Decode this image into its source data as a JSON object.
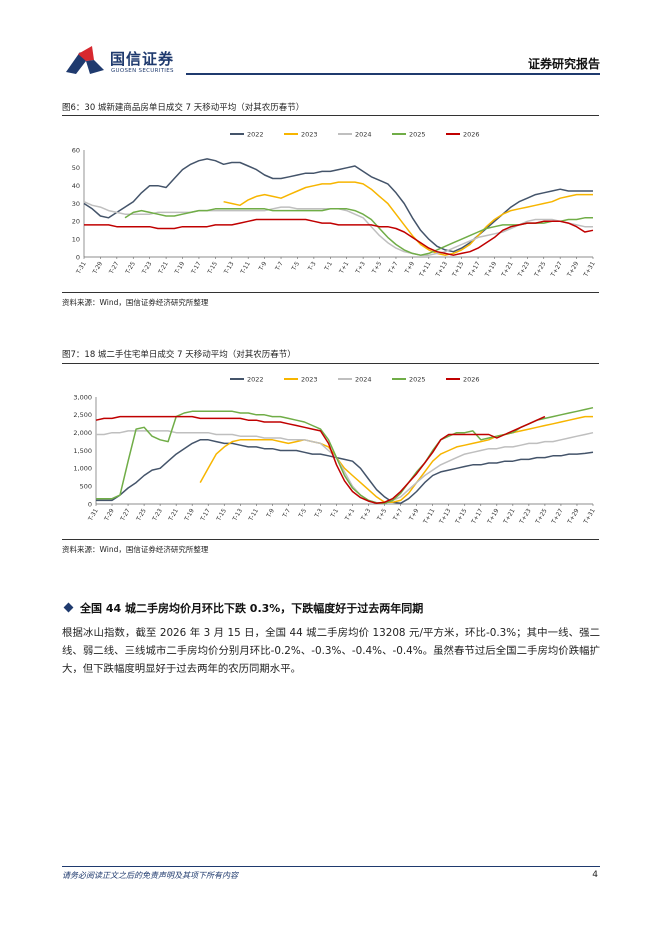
{
  "header": {
    "logo_cn": "国信证券",
    "logo_en": "GUOSEN SECURITIES",
    "report_type": "证券研究报告",
    "brand_color": "#1f3a6e",
    "logo_red": "#d7282f"
  },
  "figures": [
    {
      "title": "图6：30 城新建商品房单日成交 7 天移动平均（对其农历春节）",
      "source": "资料来源：Wind，国信证券经济研究所整理"
    },
    {
      "title": "图7：18 城二手住宅单日成交 7 天移动平均（对其农历春节）",
      "source": "资料来源：Wind，国信证券经济研究所整理"
    }
  ],
  "section": {
    "heading": "全国 44 城二手房均价月环比下跌 0.3%，下跌幅度好于过去两年同期",
    "body": "根据冰山指数，截至 2026 年 3 月 15 日，全国 44 城二手房均价 13208 元/平方米，环比-0.3%；其中一线、强二线、弱二线、三线城市二手房均价分别月环比-0.2%、-0.3%、-0.4%、-0.4%。虽然春节过后全国二手房均价跌幅扩大，但下跌幅度明显好于过去两年的农历同期水平。"
  },
  "footer": {
    "disclaimer": "请务必阅读正文之后的免责声明及其项下所有内容",
    "page": "4"
  },
  "chart_data": [
    {
      "type": "line",
      "x": [
        "T-31",
        "T-30",
        "T-29",
        "T-28",
        "T-27",
        "T-26",
        "T-25",
        "T-24",
        "T-23",
        "T-22",
        "T-21",
        "T-20",
        "T-19",
        "T-18",
        "T-17",
        "T-16",
        "T-15",
        "T-14",
        "T-13",
        "T-12",
        "T-11",
        "T-10",
        "T-9",
        "T-8",
        "T-7",
        "T-6",
        "T-5",
        "T-4",
        "T-3",
        "T-2",
        "T-1",
        "T+0",
        "T+1",
        "T+2",
        "T+3",
        "T+4",
        "T+5",
        "T+6",
        "T+7",
        "T+8",
        "T+9",
        "T+10",
        "T+11",
        "T+12",
        "T+13",
        "T+14",
        "T+15",
        "T+16",
        "T+17",
        "T+18",
        "T+19",
        "T+20",
        "T+21",
        "T+22",
        "T+23",
        "T+24",
        "T+25",
        "T+26",
        "T+27",
        "T+28",
        "T+29",
        "T+30",
        "T+31"
      ],
      "xticks": [
        "T-31",
        "T-29",
        "T-27",
        "T-25",
        "T-23",
        "T-21",
        "T-19",
        "T-17",
        "T-15",
        "T-13",
        "T-11",
        "T-9",
        "T-7",
        "T-5",
        "T-3",
        "T-1",
        "T+1",
        "T+3",
        "T+5",
        "T+7",
        "T+9",
        "T+11",
        "T+13",
        "T+15",
        "T+17",
        "T+19",
        "T+21",
        "T+23",
        "T+25",
        "T+27",
        "T+29",
        "T+31"
      ],
      "yticks": [
        "0",
        "10",
        "20",
        "30",
        "40",
        "50",
        "60"
      ],
      "ylim": [
        0,
        60
      ],
      "legend_position": "top",
      "series": [
        {
          "name": "2022",
          "color": "#44546a",
          "values": [
            30,
            27,
            23,
            22,
            25,
            28,
            31,
            36,
            40,
            40,
            39,
            44,
            49,
            52,
            54,
            55,
            54,
            52,
            53,
            53,
            51,
            49,
            46,
            44,
            44,
            45,
            46,
            47,
            47,
            48,
            48,
            49,
            50,
            51,
            48,
            45,
            43,
            41,
            36,
            30,
            22,
            15,
            10,
            6,
            4,
            3,
            5,
            8,
            12,
            16,
            20,
            24,
            28,
            31,
            33,
            35,
            36,
            37,
            38,
            37,
            37,
            37,
            37
          ]
        },
        {
          "name": "2023",
          "color": "#f7b500",
          "values": [
            null,
            null,
            null,
            null,
            null,
            null,
            null,
            null,
            null,
            null,
            null,
            null,
            null,
            null,
            null,
            null,
            null,
            31,
            30,
            29,
            32,
            34,
            35,
            34,
            33,
            35,
            37,
            39,
            40,
            41,
            41,
            42,
            42,
            42,
            41,
            38,
            34,
            30,
            24,
            18,
            12,
            7,
            4,
            2,
            1,
            2,
            4,
            7,
            12,
            17,
            21,
            24,
            26,
            27,
            28,
            29,
            30,
            31,
            33,
            34,
            35,
            35,
            35
          ]
        },
        {
          "name": "2024",
          "color": "#bfbfbf",
          "values": [
            31,
            29,
            28,
            26,
            25,
            24,
            24,
            24,
            24,
            25,
            25,
            25,
            25,
            25,
            26,
            26,
            26,
            26,
            26,
            26,
            26,
            26,
            26,
            27,
            28,
            28,
            27,
            27,
            27,
            27,
            27,
            27,
            26,
            24,
            22,
            17,
            12,
            8,
            5,
            3,
            2,
            1,
            1,
            2,
            3,
            5,
            7,
            9,
            11,
            12,
            13,
            14,
            16,
            18,
            20,
            21,
            21,
            21,
            20,
            19,
            18,
            17,
            17
          ]
        },
        {
          "name": "2025",
          "color": "#70ad47",
          "values": [
            null,
            null,
            null,
            null,
            null,
            22,
            25,
            26,
            25,
            24,
            23,
            23,
            24,
            25,
            26,
            26,
            27,
            27,
            27,
            27,
            27,
            27,
            27,
            26,
            26,
            26,
            26,
            26,
            26,
            26,
            27,
            27,
            27,
            26,
            24,
            21,
            16,
            11,
            7,
            4,
            2,
            1,
            2,
            4,
            6,
            8,
            10,
            12,
            14,
            16,
            17,
            18,
            18,
            18,
            19,
            19,
            19,
            20,
            20,
            21,
            21,
            22,
            22
          ]
        },
        {
          "name": "2026",
          "color": "#c00000",
          "values": [
            18,
            18,
            18,
            18,
            17,
            17,
            17,
            17,
            17,
            16,
            16,
            16,
            17,
            17,
            17,
            17,
            18,
            18,
            18,
            19,
            20,
            21,
            21,
            21,
            21,
            21,
            21,
            21,
            20,
            19,
            19,
            18,
            18,
            18,
            18,
            18,
            17,
            17,
            16,
            14,
            11,
            8,
            5,
            3,
            2,
            1,
            2,
            3,
            5,
            8,
            11,
            15,
            17,
            18,
            19,
            19,
            20,
            20,
            20,
            19,
            17,
            14,
            15
          ]
        }
      ]
    },
    {
      "type": "line",
      "x": [
        "T-31",
        "T-30",
        "T-29",
        "T-28",
        "T-27",
        "T-26",
        "T-25",
        "T-24",
        "T-23",
        "T-22",
        "T-21",
        "T-20",
        "T-19",
        "T-18",
        "T-17",
        "T-16",
        "T-15",
        "T-14",
        "T-13",
        "T-12",
        "T-11",
        "T-10",
        "T-9",
        "T-8",
        "T-7",
        "T-6",
        "T-5",
        "T-4",
        "T-3",
        "T-2",
        "T-1",
        "T+0",
        "T+1",
        "T+2",
        "T+3",
        "T+4",
        "T+5",
        "T+6",
        "T+7",
        "T+8",
        "T+9",
        "T+10",
        "T+11",
        "T+12",
        "T+13",
        "T+14",
        "T+15",
        "T+16",
        "T+17",
        "T+18",
        "T+19",
        "T+20",
        "T+21",
        "T+22",
        "T+23",
        "T+24",
        "T+25",
        "T+26",
        "T+27",
        "T+28",
        "T+29",
        "T+30",
        "T+31"
      ],
      "xticks": [
        "T-31",
        "T-29",
        "T-27",
        "T-25",
        "T-23",
        "T-21",
        "T-19",
        "T-17",
        "T-15",
        "T-13",
        "T-11",
        "T-9",
        "T-7",
        "T-5",
        "T-3",
        "T-1",
        "T+1",
        "T+3",
        "T+5",
        "T+7",
        "T+9",
        "T+11",
        "T+13",
        "T+15",
        "T+17",
        "T+19",
        "T+21",
        "T+23",
        "T+25",
        "T+27",
        "T+29",
        "T+31"
      ],
      "yticks": [
        "0",
        "500",
        "1,000",
        "1,500",
        "2,000",
        "2,500",
        "3,000"
      ],
      "ylim": [
        0,
        3000
      ],
      "legend_position": "top",
      "series": [
        {
          "name": "2022",
          "color": "#44546a",
          "values": [
            100,
            100,
            100,
            250,
            450,
            600,
            800,
            950,
            1000,
            1200,
            1400,
            1550,
            1700,
            1800,
            1800,
            1750,
            1700,
            1700,
            1650,
            1600,
            1600,
            1550,
            1550,
            1500,
            1500,
            1500,
            1450,
            1400,
            1400,
            1350,
            1300,
            1250,
            1200,
            1000,
            700,
            400,
            200,
            50,
            20,
            150,
            350,
            600,
            800,
            900,
            950,
            1000,
            1050,
            1100,
            1100,
            1150,
            1150,
            1200,
            1200,
            1250,
            1250,
            1300,
            1300,
            1350,
            1350,
            1400,
            1400,
            1420,
            1450
          ]
        },
        {
          "name": "2023",
          "color": "#f7b500",
          "values": [
            null,
            null,
            null,
            null,
            null,
            null,
            null,
            null,
            null,
            null,
            null,
            null,
            null,
            600,
            1000,
            1400,
            1600,
            1750,
            1800,
            1800,
            1800,
            1800,
            1800,
            1750,
            1700,
            1750,
            1800,
            1750,
            1700,
            1600,
            1300,
            1000,
            800,
            600,
            400,
            200,
            50,
            50,
            100,
            300,
            600,
            900,
            1200,
            1400,
            1500,
            1600,
            1650,
            1700,
            1750,
            1800,
            1900,
            1950,
            2000,
            2050,
            2100,
            2150,
            2200,
            2250,
            2300,
            2350,
            2400,
            2450,
            2450
          ]
        },
        {
          "name": "2024",
          "color": "#bfbfbf",
          "values": [
            1950,
            1950,
            2000,
            2000,
            2050,
            2050,
            2050,
            2050,
            2050,
            2050,
            2000,
            2000,
            2000,
            2000,
            2000,
            1950,
            1950,
            1950,
            1900,
            1900,
            1900,
            1850,
            1850,
            1850,
            1800,
            1800,
            1800,
            1750,
            1700,
            1500,
            1300,
            900,
            500,
            250,
            100,
            40,
            20,
            100,
            200,
            400,
            600,
            800,
            950,
            1100,
            1200,
            1300,
            1400,
            1450,
            1500,
            1550,
            1550,
            1600,
            1600,
            1650,
            1700,
            1700,
            1750,
            1750,
            1800,
            1850,
            1900,
            1950,
            2000
          ]
        },
        {
          "name": "2025",
          "color": "#70ad47",
          "values": [
            150,
            150,
            150,
            250,
            1200,
            2100,
            2150,
            1900,
            1800,
            1750,
            2450,
            2550,
            2600,
            2600,
            2600,
            2600,
            2600,
            2600,
            2550,
            2550,
            2500,
            2500,
            2450,
            2450,
            2400,
            2350,
            2300,
            2200,
            2100,
            1800,
            1300,
            800,
            450,
            250,
            100,
            30,
            20,
            100,
            300,
            600,
            900,
            1150,
            1500,
            1800,
            1900,
            2000,
            2000,
            2050,
            1800,
            1850,
            1900,
            1950,
            2000,
            2150,
            2250,
            2350,
            2400,
            2450,
            2500,
            2550,
            2600,
            2650,
            2700
          ]
        },
        {
          "name": "2026",
          "color": "#c00000",
          "values": [
            2350,
            2400,
            2400,
            2450,
            2450,
            2450,
            2450,
            2450,
            2450,
            2450,
            2450,
            2450,
            2450,
            2400,
            2400,
            2400,
            2400,
            2400,
            2400,
            2350,
            2350,
            2300,
            2300,
            2300,
            2250,
            2200,
            2150,
            2100,
            2050,
            1700,
            1100,
            650,
            350,
            180,
            80,
            20,
            50,
            150,
            350,
            600,
            850,
            1150,
            1450,
            1800,
            1950,
            1950,
            1950,
            1950,
            1950,
            1950,
            1850,
            1950,
            2050,
            2150,
            2250,
            2350,
            2450,
            null,
            null,
            null,
            null,
            null,
            null
          ]
        }
      ]
    }
  ]
}
